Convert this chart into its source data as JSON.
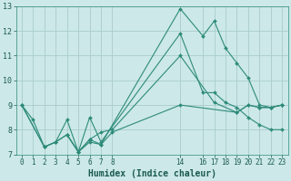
{
  "background_color": "#cce8e8",
  "grid_color": "#aacccc",
  "line_color": "#2e8b7a",
  "xlim": [
    -0.5,
    23.5
  ],
  "ylim": [
    7,
    13
  ],
  "yticks": [
    7,
    8,
    9,
    10,
    11,
    12,
    13
  ],
  "xticks": [
    0,
    1,
    2,
    3,
    4,
    5,
    6,
    7,
    8,
    14,
    16,
    17,
    18,
    19,
    20,
    21,
    22,
    23
  ],
  "xlabel": "Humidex (Indice chaleur)",
  "lines": [
    {
      "x": [
        0,
        1,
        2,
        3,
        4,
        5,
        6,
        7,
        14,
        16,
        17,
        18,
        19,
        20,
        21,
        22,
        23
      ],
      "y": [
        9.0,
        8.4,
        7.3,
        7.5,
        8.4,
        7.1,
        7.5,
        7.4,
        12.9,
        11.8,
        12.4,
        11.3,
        10.7,
        10.1,
        9.0,
        8.9,
        9.0
      ]
    },
    {
      "x": [
        0,
        2,
        3,
        4,
        5,
        6,
        7,
        14,
        16,
        17,
        18,
        19,
        20,
        21,
        22,
        23
      ],
      "y": [
        9.0,
        7.3,
        7.5,
        7.8,
        7.1,
        8.5,
        7.5,
        11.9,
        9.5,
        9.5,
        9.1,
        8.9,
        8.5,
        8.2,
        8.0,
        8.0
      ]
    },
    {
      "x": [
        0,
        2,
        3,
        4,
        5,
        6,
        7,
        8,
        14,
        17,
        19,
        20,
        21,
        22,
        23
      ],
      "y": [
        9.0,
        7.3,
        7.5,
        7.8,
        7.1,
        7.6,
        7.9,
        8.0,
        11.0,
        9.1,
        8.7,
        9.0,
        8.9,
        8.9,
        9.0
      ]
    },
    {
      "x": [
        4,
        5,
        6,
        7,
        8,
        14,
        19,
        20,
        21,
        22,
        23
      ],
      "y": [
        7.8,
        7.1,
        7.6,
        7.4,
        7.9,
        9.0,
        8.7,
        9.0,
        8.9,
        8.9,
        9.0
      ]
    }
  ]
}
